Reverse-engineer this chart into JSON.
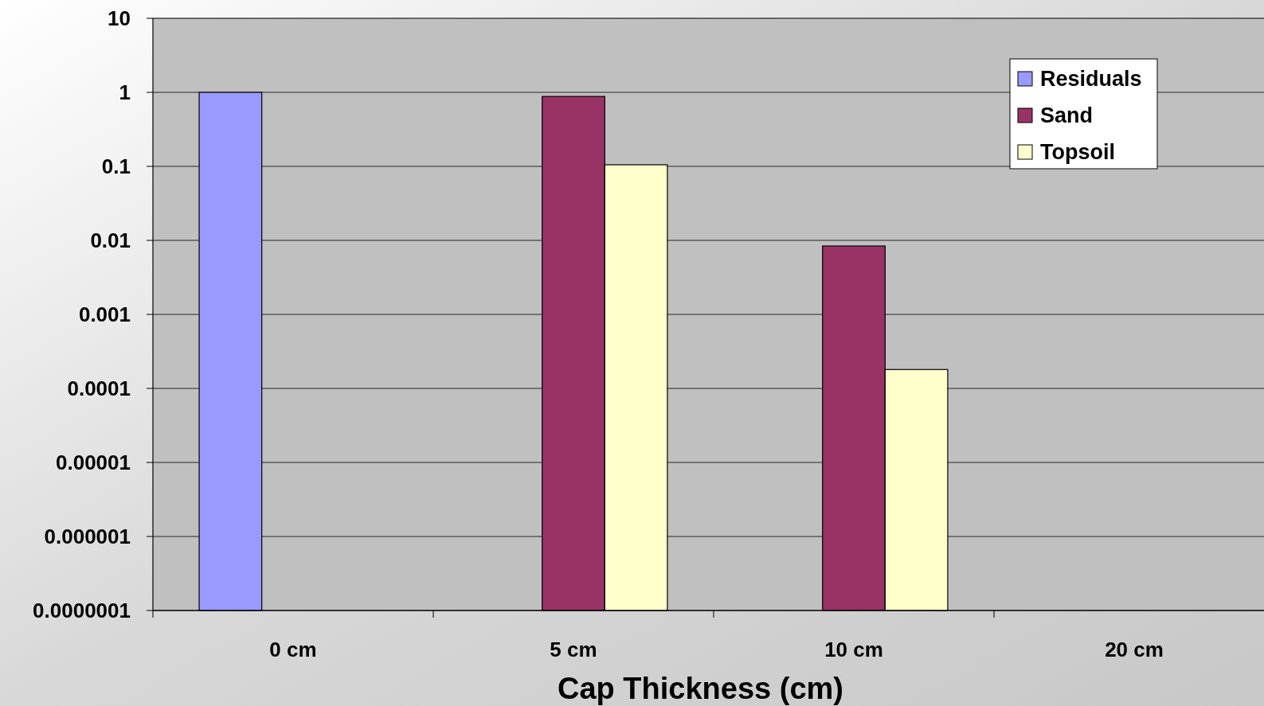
{
  "chart_data": {
    "type": "bar",
    "xlabel": "Cap Thickness (cm)",
    "categories": [
      "0 cm",
      "5 cm",
      "10 cm",
      "20 cm"
    ],
    "series": [
      {
        "name": "Residuals",
        "color": "#9999ff",
        "values": [
          1,
          null,
          null,
          null
        ]
      },
      {
        "name": "Sand",
        "color": "#993366",
        "values": [
          null,
          0.88,
          0.0084,
          null
        ]
      },
      {
        "name": "Topsoil",
        "color": "#ffffcc",
        "values": [
          null,
          0.105,
          0.00018,
          null
        ]
      }
    ],
    "log": true,
    "ylim": [
      1e-07,
      10
    ],
    "yticks": [
      10,
      1,
      0.1,
      0.01,
      0.001,
      0.0001,
      {
        "value": 1e-05,
        "label": "0.00001"
      },
      {
        "value": 1e-06,
        "label": "0.000001"
      },
      {
        "value": 1e-07,
        "label": "0.0000001"
      }
    ],
    "grid": "y",
    "legend": "top right"
  }
}
